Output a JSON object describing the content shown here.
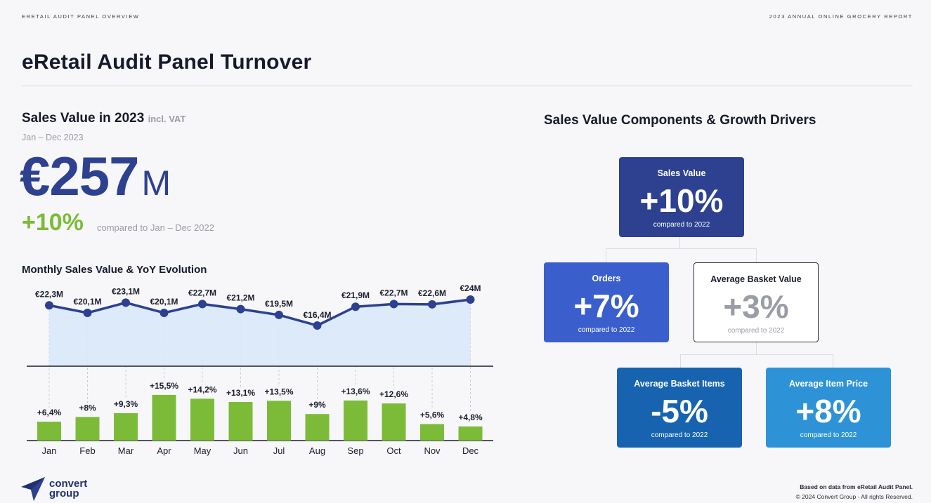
{
  "header": {
    "left_label": "ERETAIL AUDIT PANEL OVERVIEW",
    "right_label": "2023 ANNUAL ONLINE GROCERY REPORT",
    "title": "eRetail Audit Panel Turnover"
  },
  "kpi": {
    "heading": "Sales Value in 2023",
    "heading_suffix": "incl. VAT",
    "period": "Jan – Dec 2023",
    "value": "€257",
    "unit": "M",
    "growth": "+10%",
    "growth_note": "compared to Jan – Dec 2022"
  },
  "monthly": {
    "heading": "Monthly Sales Value & YoY Evolution"
  },
  "chart_data": [
    {
      "type": "area",
      "x": [
        "Jan",
        "Feb",
        "Mar",
        "Apr",
        "May",
        "Jun",
        "Jul",
        "Aug",
        "Sep",
        "Oct",
        "Nov",
        "Dec"
      ],
      "values": [
        22.3,
        20.1,
        23.1,
        20.1,
        22.7,
        21.2,
        19.5,
        16.4,
        21.9,
        22.7,
        22.6,
        24
      ],
      "labels": [
        "€22,3M",
        "€20,1M",
        "€23,1M",
        "€20,1M",
        "€22,7M",
        "€21,2M",
        "€19,5M",
        "€16,4M",
        "€21,9M",
        "€22,7M",
        "€22,6M",
        "€24M"
      ],
      "unit": "€M",
      "colors": {
        "line": "#2d4190",
        "fill": "#d8e8f8"
      },
      "grid": false
    },
    {
      "type": "bar",
      "categories": [
        "Jan",
        "Feb",
        "Mar",
        "Apr",
        "May",
        "Jun",
        "Jul",
        "Aug",
        "Sep",
        "Oct",
        "Nov",
        "Dec"
      ],
      "values": [
        6.4,
        8,
        9.3,
        15.5,
        14.2,
        13.1,
        13.5,
        9,
        13.6,
        12.6,
        5.6,
        4.8
      ],
      "labels": [
        "+6,4%",
        "+8%",
        "+9,3%",
        "+15,5%",
        "+14,2%",
        "+13,1%",
        "+13,5%",
        "+9%",
        "+13,6%",
        "+12,6%",
        "+5,6%",
        "+4,8%"
      ],
      "unit": "%",
      "colors": {
        "bar": "#7cbb37"
      },
      "grid": false
    }
  ],
  "drivers": {
    "heading": "Sales Value Components & Growth Drivers",
    "sales_value": {
      "label": "Sales Value",
      "value": "+10%",
      "note": "compared to 2022",
      "color": "#2d4190"
    },
    "orders": {
      "label": "Orders",
      "value": "+7%",
      "note": "compared to 2022",
      "color": "#3a5fcd"
    },
    "basket_value": {
      "label": "Average Basket Value",
      "value": "+3%",
      "note": "compared to 2022",
      "color": "#ffffff"
    },
    "basket_items": {
      "label": "Average Basket Items",
      "value": "-5%",
      "note": "compared to 2022",
      "color": "#1763b0"
    },
    "item_price": {
      "label": "Average Item Price",
      "value": "+8%",
      "note": "compared to 2022",
      "color": "#2e93d6"
    }
  },
  "footer": {
    "logo_line1": "convert",
    "logo_line2": "group",
    "source": "Based on data from eRetail Audit Panel.",
    "copyright": "© 2024 Convert Group - All rights Reserved."
  }
}
